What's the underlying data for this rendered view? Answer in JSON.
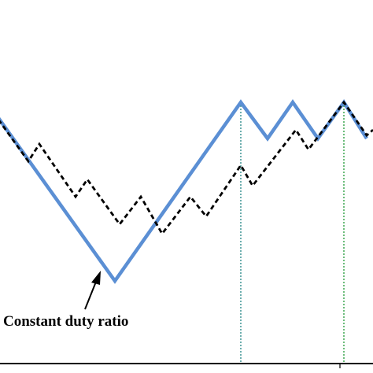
{
  "figure": {
    "annotation": "Constant duty ratio",
    "colors": {
      "solid_waveform": "#5b8fd4",
      "dashed_waveform": "#000000",
      "guide_line_teal": "#2e8b8b",
      "guide_line_green": "#2ea043",
      "axis": "#000000"
    },
    "line_styles": {
      "solid_waveform": "solid",
      "dashed_waveform": "dashed",
      "guide_lines": "dotted"
    }
  }
}
